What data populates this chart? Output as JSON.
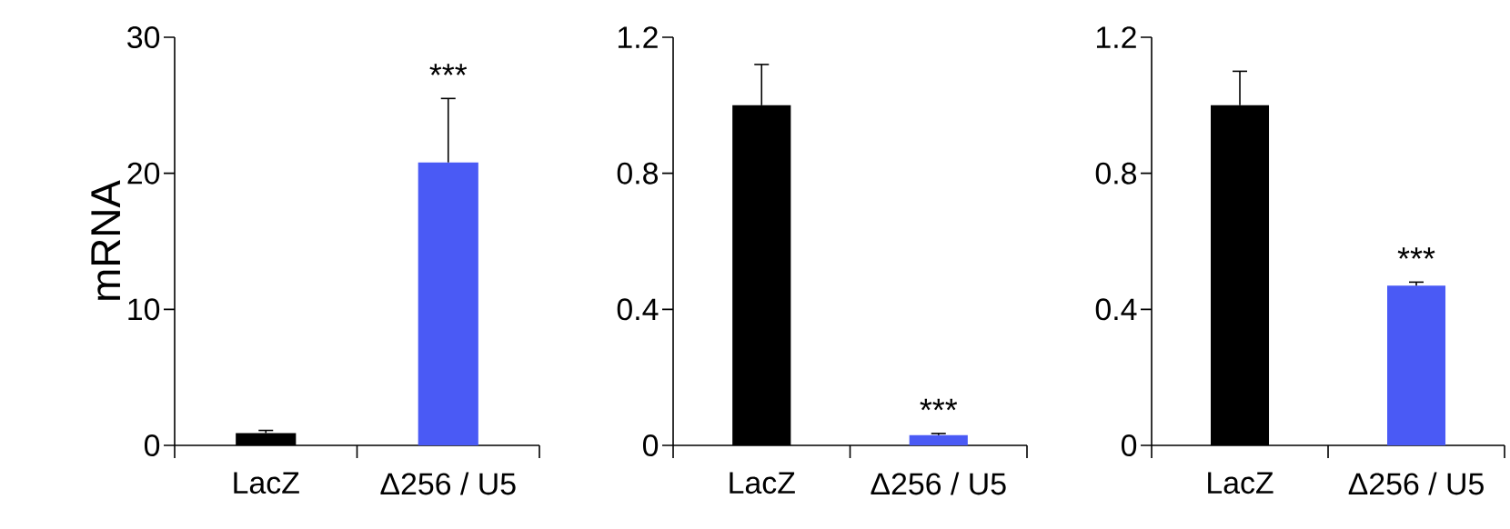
{
  "chart_data": [
    {
      "type": "bar",
      "ylabel": "mRNA",
      "categories": [
        "LacZ",
        "Δ256 / U5"
      ],
      "values": [
        0.9,
        20.8
      ],
      "colors": [
        "#000000",
        "#4a5af5"
      ],
      "errors": [
        0.2,
        4.7
      ],
      "ylim": [
        0,
        30
      ],
      "yticks": [
        0,
        10,
        20,
        30
      ],
      "annotations": [
        "***"
      ]
    },
    {
      "type": "bar",
      "categories": [
        "LacZ",
        "Δ256 / U5"
      ],
      "values": [
        1.0,
        0.03
      ],
      "colors": [
        "#000000",
        "#4a5af5"
      ],
      "errors": [
        0.12,
        0.005
      ],
      "ylim": [
        0,
        1.2
      ],
      "yticks": [
        0,
        0.4,
        0.8,
        1.2
      ],
      "annotations": [
        "***"
      ]
    },
    {
      "type": "bar",
      "categories": [
        "LacZ",
        "Δ256 / U5"
      ],
      "values": [
        1.0,
        0.47
      ],
      "colors": [
        "#000000",
        "#4a5af5"
      ],
      "errors": [
        0.1,
        0.01
      ],
      "ylim": [
        0,
        1.2
      ],
      "yticks": [
        0,
        0.4,
        0.8,
        1.2
      ],
      "annotations": [
        "***"
      ]
    }
  ]
}
